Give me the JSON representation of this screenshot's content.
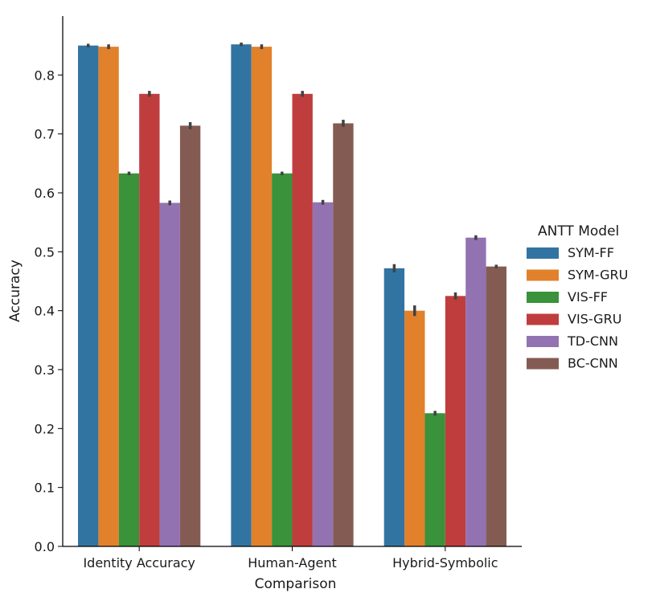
{
  "chart_data": {
    "type": "bar",
    "title": "",
    "xlabel": "Comparison",
    "ylabel": "Accuracy",
    "ylim": [
      0,
      0.9
    ],
    "yticks": [
      0.0,
      0.1,
      0.2,
      0.3,
      0.4,
      0.5,
      0.6,
      0.7,
      0.8
    ],
    "ytick_labels": [
      "0.0",
      "0.1",
      "0.2",
      "0.3",
      "0.4",
      "0.5",
      "0.6",
      "0.7",
      "0.8"
    ],
    "categories": [
      "Identity Accuracy",
      "Human-Agent",
      "Hybrid-Symbolic"
    ],
    "legend_title": "ANTT Model",
    "legend_position": "right",
    "grid": false,
    "series": [
      {
        "name": "SYM-FF",
        "color": "#3274a1",
        "values": [
          0.85,
          0.852,
          0.472
        ],
        "errors": [
          0.003,
          0.003,
          0.007
        ]
      },
      {
        "name": "SYM-GRU",
        "color": "#e1812c",
        "values": [
          0.848,
          0.848,
          0.4
        ],
        "errors": [
          0.004,
          0.004,
          0.009
        ]
      },
      {
        "name": "VIS-FF",
        "color": "#3a923a",
        "values": [
          0.633,
          0.633,
          0.226
        ],
        "errors": [
          0.003,
          0.003,
          0.004
        ]
      },
      {
        "name": "VIS-GRU",
        "color": "#c03d3e",
        "values": [
          0.768,
          0.768,
          0.425
        ],
        "errors": [
          0.005,
          0.005,
          0.006
        ]
      },
      {
        "name": "TD-CNN",
        "color": "#9372b2",
        "values": [
          0.583,
          0.584,
          0.524
        ],
        "errors": [
          0.004,
          0.004,
          0.004
        ]
      },
      {
        "name": "BC-CNN",
        "color": "#845b53",
        "values": [
          0.714,
          0.718,
          0.475
        ],
        "errors": [
          0.006,
          0.006,
          0.003
        ]
      }
    ]
  }
}
